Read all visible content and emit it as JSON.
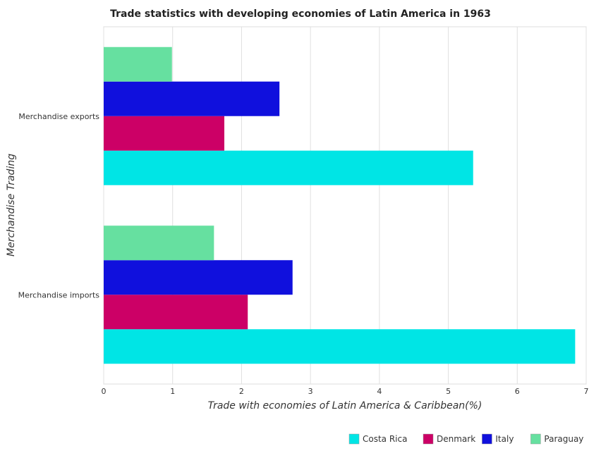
{
  "chart_data": {
    "type": "bar",
    "orientation": "horizontal",
    "title": "Trade statistics with developing economies of Latin America in 1963",
    "xlabel": "Trade with economies of Latin America & Caribbean(%)",
    "ylabel": "Merchandise Trading",
    "categories": [
      "Merchandise exports",
      "Merchandise imports"
    ],
    "xlim": [
      0,
      7
    ],
    "xticks": [
      "0",
      "1",
      "2",
      "3",
      "4",
      "5",
      "6",
      "7"
    ],
    "grid": true,
    "legend_position": "bottom-right",
    "series": [
      {
        "name": "Costa Rica",
        "color": "#00e5e5",
        "values": [
          5.36,
          6.84
        ]
      },
      {
        "name": "Denmark",
        "color": "#cc0066",
        "values": [
          1.75,
          2.09
        ]
      },
      {
        "name": "Italy",
        "color": "#1010dd",
        "values": [
          2.55,
          2.74
        ]
      },
      {
        "name": "Paraguay",
        "color": "#66e0a0",
        "values": [
          0.99,
          1.6
        ]
      }
    ]
  }
}
